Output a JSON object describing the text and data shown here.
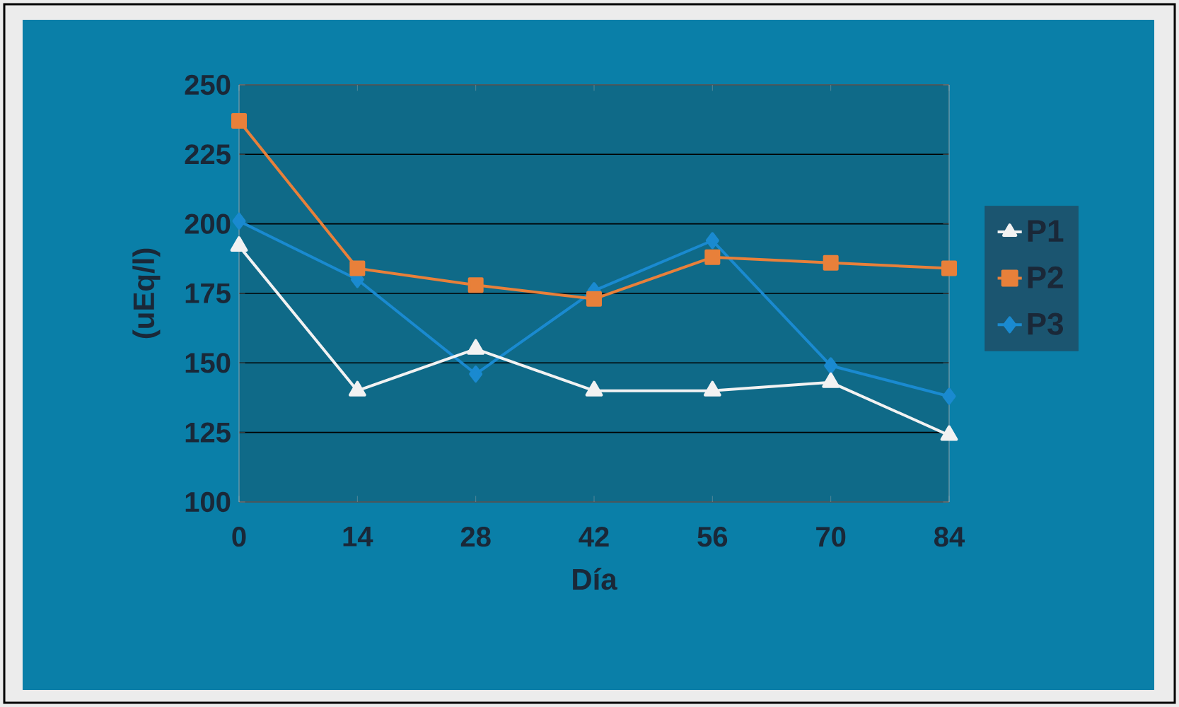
{
  "chart_data": {
    "type": "line",
    "xlabel": "Día",
    "ylabel": "(uEq/l)",
    "x": [
      0,
      14,
      28,
      42,
      56,
      70,
      84
    ],
    "xlim": [
      0,
      84
    ],
    "xticks": [
      0,
      14,
      28,
      42,
      56,
      70,
      84
    ],
    "ylim": [
      100,
      250
    ],
    "yticks": [
      100,
      125,
      150,
      175,
      200,
      225,
      250
    ],
    "grid": "y",
    "legend": "right",
    "series": [
      {
        "name": "P1",
        "color": "#f2f2f2",
        "marker": "triangle",
        "values": [
          192,
          140,
          155,
          140,
          140,
          143,
          124
        ]
      },
      {
        "name": "P2",
        "color": "#e8803a",
        "marker": "square",
        "values": [
          237,
          184,
          178,
          173,
          188,
          186,
          184
        ]
      },
      {
        "name": "P3",
        "color": "#1a8ad0",
        "marker": "diamond",
        "values": [
          201,
          180,
          146,
          176,
          194,
          149,
          138
        ]
      }
    ]
  }
}
